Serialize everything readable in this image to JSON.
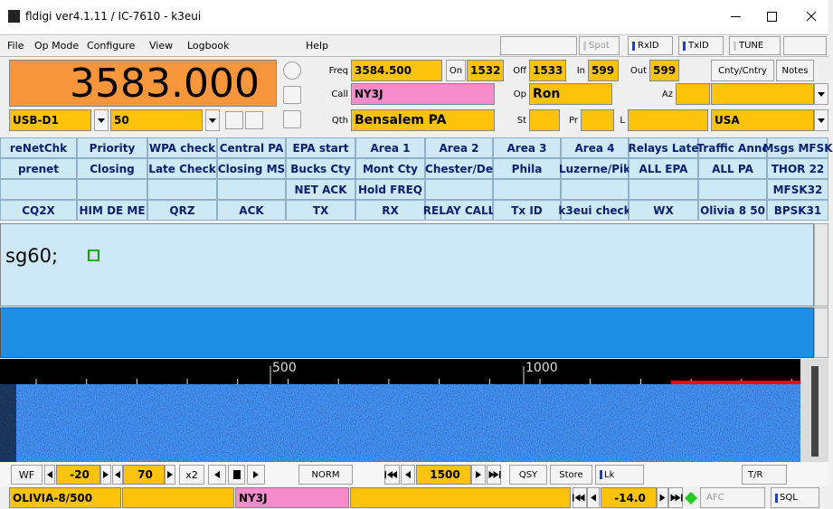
{
  "window": {
    "title": "fldigi ver4.1.11 / IC-7610 - k3eui"
  },
  "menu": [
    "File",
    "Op Mode",
    "Configure",
    "View",
    "Logbook",
    "Help"
  ],
  "toolbar": [
    "Spot",
    "RxID",
    "TxID",
    "TUNE"
  ],
  "frequency": "3583.000",
  "log": {
    "freq_label": "Freq",
    "freq": "3584.500",
    "on_label": "On",
    "on": "1532",
    "off_label": "Off",
    "off": "1533",
    "in_label": "In",
    "in": "599",
    "out_label": "Out",
    "out": "599",
    "cnty_label": "Cnty/Cntry",
    "notes_label": "Notes",
    "call_label": "Call",
    "call": "NY3J",
    "op_label": "Op",
    "op": "Ron",
    "az_label": "Az",
    "qth_label": "Qth",
    "qth": "Bensalem  PA",
    "st_label": "St",
    "pr_label": "Pr",
    "l_label": "L",
    "country": "USA"
  },
  "mode": "USB-D1",
  "bandwidth": "50",
  "macros": [
    [
      "reNetChk",
      "Priority",
      "WPA check",
      "Central PA",
      "EPA start",
      "Area 1",
      "Area 2",
      "Area 3",
      "Area 4",
      "Relays Late",
      "Traffic Annc",
      "Msgs MFSK"
    ],
    [
      "prenet",
      "Closing",
      "Late Check",
      "Closing MS",
      "Bucks Cty",
      "Mont Cty",
      "Chester/De",
      "Phila",
      "Luzerne/Pik",
      "ALL EPA",
      "ALL PA",
      "THOR 22"
    ],
    [
      null,
      null,
      null,
      null,
      "NET ACK",
      "Hold FREQ",
      null,
      null,
      null,
      null,
      null,
      "MFSK32"
    ],
    [
      "CQ2X",
      "HIM DE ME",
      "QRZ",
      "ACK",
      "TX",
      "RX",
      "RELAY CALL",
      "Tx ID",
      "k3eui check",
      "WX",
      "Olivia 8 50",
      "BPSK31"
    ]
  ],
  "rx_text": "sg60;",
  "waterfall": {
    "scale": [
      "500",
      "1000"
    ]
  },
  "controls": {
    "wf": "WF",
    "ref": "-20",
    "range": "70",
    "zoom": "x2",
    "speed": "NORM",
    "carrier": "1500",
    "qsy": "QSY",
    "store": "Store",
    "lock": "Lk",
    "tr": "T/R"
  },
  "status": {
    "mode": "OLIVIA-8/500",
    "call": "NY3J",
    "afc_value": "-14.0",
    "afc": "AFC",
    "sql": "SQL"
  }
}
